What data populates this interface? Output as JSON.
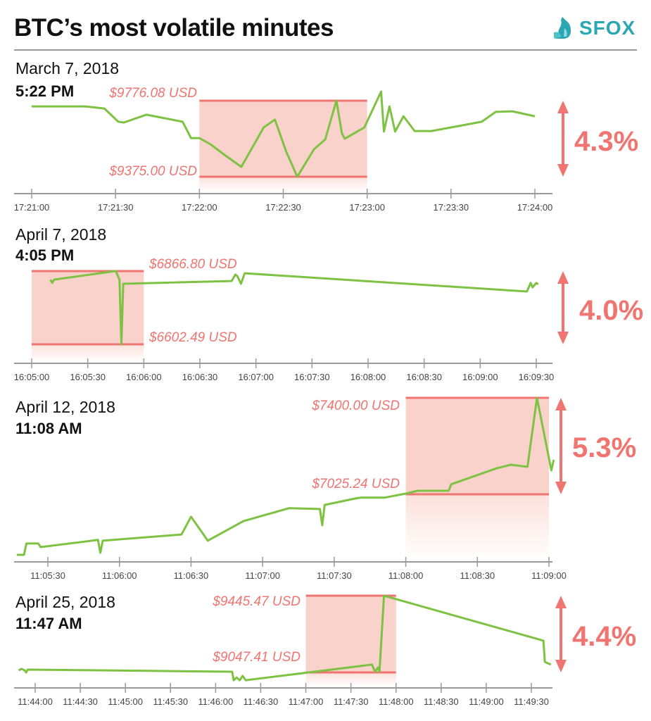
{
  "header": {
    "title": "BTC’s most volatile minutes",
    "logo_text": "SFOX"
  },
  "colors": {
    "accent_red": "#f07470",
    "band_fill": "#f9d3cb",
    "line_green": "#7dc242",
    "brand_teal": "#2aa7b3",
    "axis_gray": "#9a9a9a"
  },
  "chart_data": [
    {
      "type": "line",
      "date": "March 7, 2018",
      "time": "5:22 PM",
      "high_label": "$9776.08 USD",
      "low_label": "$9375.00 USD",
      "high": 9776.08,
      "low": 9375.0,
      "change_label": "4.3%",
      "window": [
        "17:22:00",
        "17:23:00"
      ],
      "ticks": [
        "17:21:00",
        "17:21:30",
        "17:22:00",
        "17:22:30",
        "17:23:00",
        "17:23:30",
        "17:24:00"
      ],
      "points": [
        [
          "17:21:00",
          9746
        ],
        [
          "17:21:19",
          9746
        ],
        [
          "17:21:26",
          9735
        ],
        [
          "17:21:31",
          9665
        ],
        [
          "17:21:33",
          9661
        ],
        [
          "17:21:41",
          9702
        ],
        [
          "17:21:54",
          9665
        ],
        [
          "17:21:57",
          9579
        ],
        [
          "17:22:00",
          9579
        ],
        [
          "17:22:04",
          9546
        ],
        [
          "17:22:09",
          9490
        ],
        [
          "17:22:15",
          9427
        ],
        [
          "17:22:23",
          9635
        ],
        [
          "17:22:27",
          9676
        ],
        [
          "17:22:31",
          9509
        ],
        [
          "17:22:35",
          9375
        ],
        [
          "17:22:41",
          9520
        ],
        [
          "17:22:45",
          9572
        ],
        [
          "17:22:49",
          9776
        ],
        [
          "17:22:51",
          9602
        ],
        [
          "17:22:52",
          9576
        ],
        [
          "17:22:59",
          9635
        ],
        [
          "17:23:05",
          9824
        ],
        [
          "17:23:06",
          9613
        ],
        [
          "17:23:08",
          9746
        ],
        [
          "17:23:10",
          9613
        ],
        [
          "17:23:13",
          9694
        ],
        [
          "17:23:17",
          9616
        ],
        [
          "17:23:23",
          9616
        ],
        [
          "17:23:30",
          9635
        ],
        [
          "17:23:41",
          9665
        ],
        [
          "17:23:46",
          9717
        ],
        [
          "17:23:52",
          9720
        ],
        [
          "17:24:00",
          9694
        ]
      ]
    },
    {
      "type": "line",
      "date": "April 7, 2018",
      "time": "4:05 PM",
      "high_label": "$6866.80 USD",
      "low_label": "$6602.49 USD",
      "high": 6866.8,
      "low": 6602.49,
      "change_label": "4.0%",
      "window": [
        "16:05:00",
        "16:06:00"
      ],
      "ticks": [
        "16:05:00",
        "16:05:30",
        "16:06:00",
        "16:06:30",
        "16:07:00",
        "16:07:30",
        "16:08:00",
        "16:08:30",
        "16:09:00",
        "16:09:30"
      ],
      "points": [
        [
          "16:05:10",
          6836
        ],
        [
          "16:05:11",
          6824
        ],
        [
          "16:05:12",
          6836
        ],
        [
          "16:05:45",
          6867
        ],
        [
          "16:05:47",
          6836
        ],
        [
          "16:05:48",
          6602
        ],
        [
          "16:05:49",
          6821
        ],
        [
          "16:06:47",
          6831
        ],
        [
          "16:06:49",
          6854
        ],
        [
          "16:06:50",
          6849
        ],
        [
          "16:06:52",
          6821
        ],
        [
          "16:06:54",
          6859
        ],
        [
          "16:09:25",
          6793
        ],
        [
          "16:09:27",
          6824
        ],
        [
          "16:09:28",
          6808
        ],
        [
          "16:09:30",
          6824
        ],
        [
          "16:09:31",
          6819
        ]
      ]
    },
    {
      "type": "line",
      "date": "April 12, 2018",
      "time": "11:08 AM",
      "high_label": "$7400.00 USD",
      "low_label": "$7025.24 USD",
      "high": 7400.0,
      "low": 7025.24,
      "change_label": "5.3%",
      "window": [
        "11:08:00",
        "11:09:00"
      ],
      "ticks": [
        "11:05:30",
        "11:06:00",
        "11:06:30",
        "11:07:00",
        "11:07:30",
        "11:08:00",
        "11:08:30",
        "11:09:00"
      ],
      "points": [
        [
          "11:05:17",
          6790
        ],
        [
          "11:05:20",
          6790
        ],
        [
          "11:05:21",
          6834
        ],
        [
          "11:05:26",
          6834
        ],
        [
          "11:05:27",
          6820
        ],
        [
          "11:05:51",
          6848
        ],
        [
          "11:05:52",
          6798
        ],
        [
          "11:05:53",
          6845
        ],
        [
          "11:06:26",
          6869
        ],
        [
          "11:06:30",
          6938
        ],
        [
          "11:06:35",
          6872
        ],
        [
          "11:06:37",
          6845
        ],
        [
          "11:06:52",
          6921
        ],
        [
          "11:07:11",
          6971
        ],
        [
          "11:07:24",
          6968
        ],
        [
          "11:07:25",
          6905
        ],
        [
          "11:07:26",
          6984
        ],
        [
          "11:07:39",
          7009
        ],
        [
          "11:07:41",
          7012
        ],
        [
          "11:07:51",
          7012
        ],
        [
          "11:08:00",
          7028
        ],
        [
          "11:08:05",
          7039
        ],
        [
          "11:08:18",
          7039
        ],
        [
          "11:08:19",
          7064
        ],
        [
          "11:08:38",
          7126
        ],
        [
          "11:08:44",
          7140
        ],
        [
          "11:08:51",
          7132
        ],
        [
          "11:08:55",
          7400
        ],
        [
          "11:09:01",
          7118
        ],
        [
          "11:09:02",
          7159
        ]
      ]
    },
    {
      "type": "line",
      "date": "April 25, 2018",
      "time": "11:47 AM",
      "high_label": "$9445.47 USD",
      "low_label": "$9047.41 USD",
      "high": 9445.47,
      "low": 9047.41,
      "change_label": "4.4%",
      "window": [
        "11:47:00",
        "11:48:00"
      ],
      "ticks": [
        "11:44:00",
        "11:44:30",
        "11:45:00",
        "11:45:30",
        "11:46:00",
        "11:46:30",
        "11:47:00",
        "11:47:30",
        "11:48:00",
        "11:48:30",
        "11:49:00",
        "11:49:30"
      ],
      "points": [
        [
          "11:43:49",
          9058
        ],
        [
          "11:43:51",
          9066
        ],
        [
          "11:43:53",
          9058
        ],
        [
          "11:43:54",
          9047
        ],
        [
          "11:43:55",
          9062
        ],
        [
          "11:46:11",
          9051
        ],
        [
          "11:46:12",
          9007
        ],
        [
          "11:46:14",
          9021
        ],
        [
          "11:46:16",
          9007
        ],
        [
          "11:46:18",
          9029
        ],
        [
          "11:46:20",
          9007
        ],
        [
          "11:47:44",
          9088
        ],
        [
          "11:47:46",
          9051
        ],
        [
          "11:47:48",
          9073
        ],
        [
          "11:47:49",
          9051
        ],
        [
          "11:47:52",
          9445
        ],
        [
          "11:49:38",
          9212
        ],
        [
          "11:49:39",
          9102
        ],
        [
          "11:49:43",
          9088
        ]
      ]
    }
  ]
}
